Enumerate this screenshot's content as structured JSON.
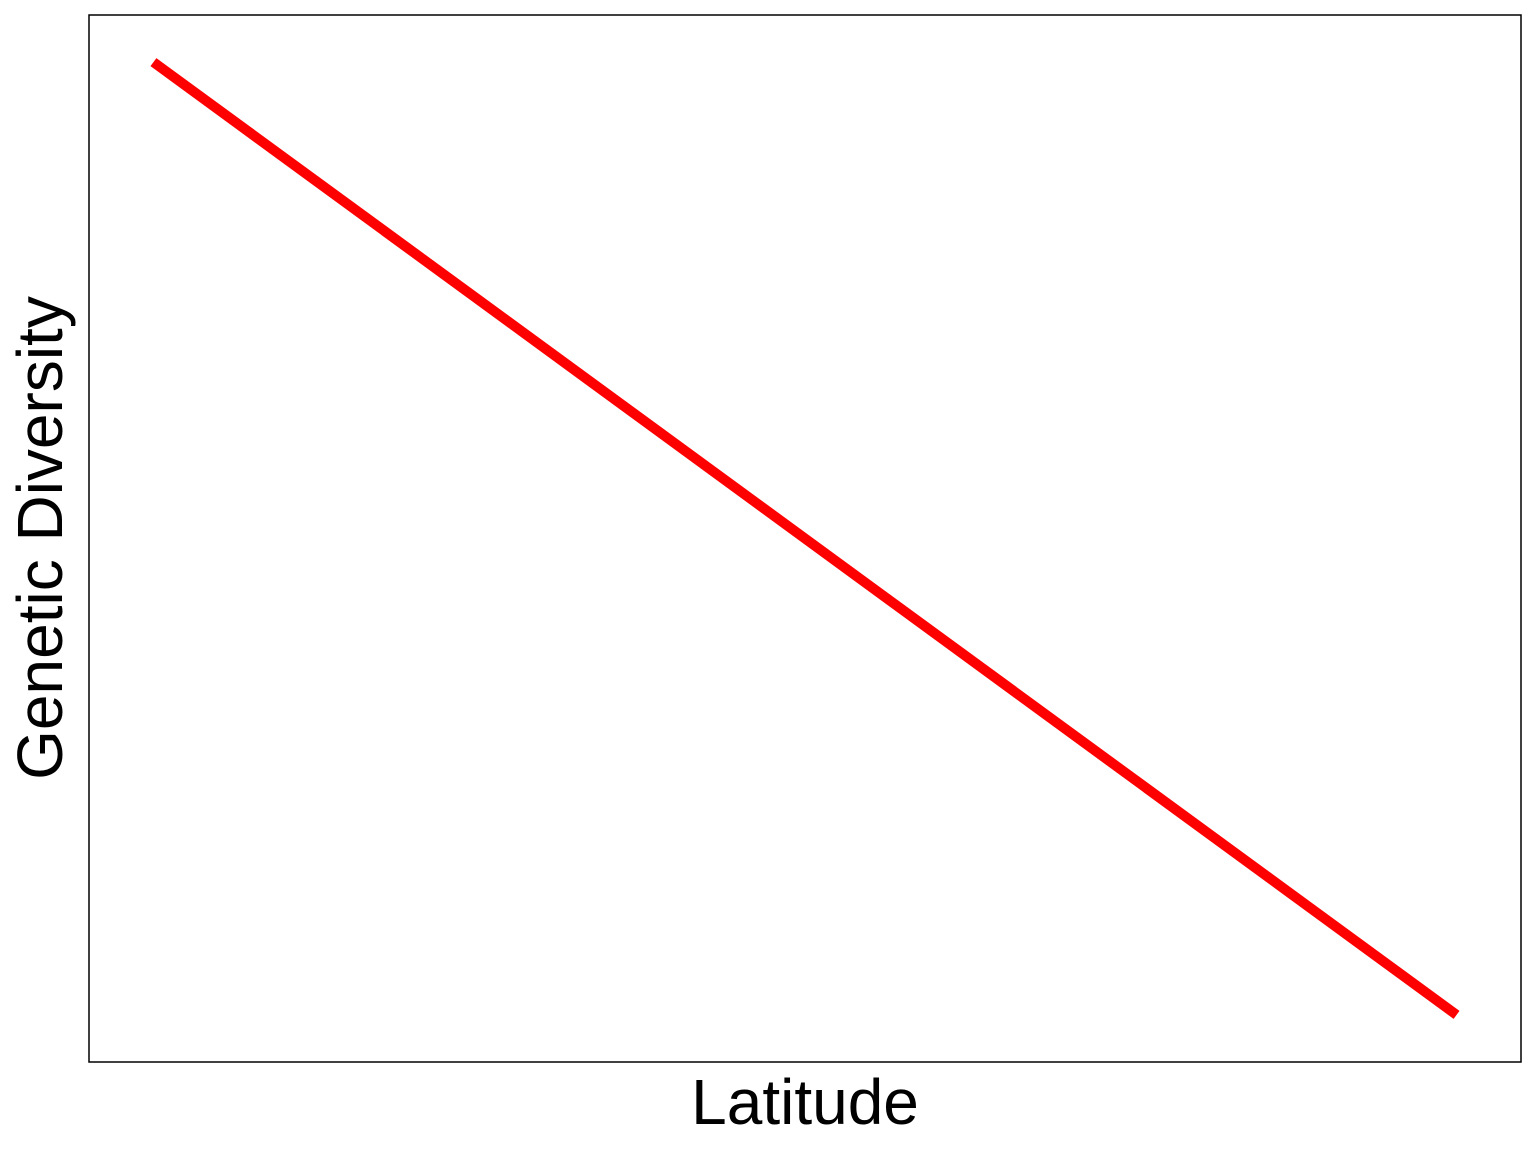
{
  "chart_data": {
    "type": "line",
    "title": "",
    "xlabel": "Latitude",
    "ylabel": "Genetic Diversity",
    "xlim": [
      0,
      1
    ],
    "ylim": [
      0,
      1
    ],
    "grid": false,
    "series": [
      {
        "color": "#ff0000",
        "x": [
          0.045,
          0.955
        ],
        "y": [
          0.955,
          0.045
        ]
      }
    ],
    "x_ticks": [],
    "y_ticks": []
  }
}
